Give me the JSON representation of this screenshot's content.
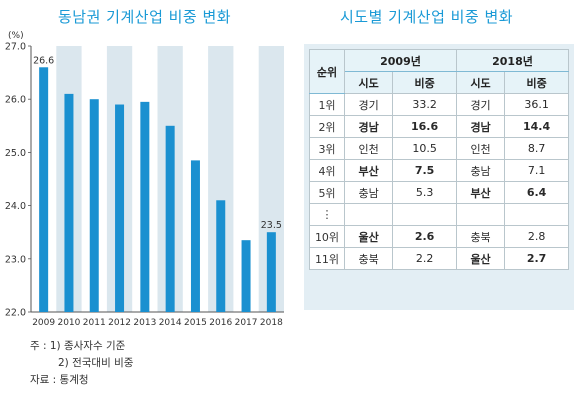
{
  "left_title": "동남권 기계산업 비중 변화",
  "right_title": "시도별 기계산업 비중 변화",
  "chart_data": {
    "type": "bar",
    "unit": "(%)",
    "categories": [
      "2009",
      "2010",
      "2011",
      "2012",
      "2013",
      "2014",
      "2015",
      "2016",
      "2017",
      "2018"
    ],
    "values": [
      26.6,
      26.1,
      26.0,
      25.9,
      25.95,
      25.5,
      24.85,
      24.1,
      23.35,
      23.5
    ],
    "data_labels": {
      "2009": "26.6",
      "2018": "23.5"
    },
    "yticks": [
      "27.0",
      "26.0",
      "25.0",
      "24.0",
      "23.0",
      "22.0"
    ],
    "ylim": [
      22.0,
      27.0
    ],
    "bar_color": "#1a90d0",
    "band_color": "#dbe7ee"
  },
  "notes": {
    "line1": "주 : 1) 종사자수 기준",
    "line2": "2) 전국대비 비중",
    "source": "자료 : 통계청"
  },
  "table": {
    "rank_header": "순위",
    "year1": "2009년",
    "year2": "2018년",
    "sub": [
      "시도",
      "비중",
      "시도",
      "비중"
    ],
    "rows": [
      {
        "rank": "1위",
        "r1": "경기",
        "v1": "33.2",
        "r2": "경기",
        "v2": "36.1",
        "b1": false,
        "b2": false
      },
      {
        "rank": "2위",
        "r1": "경남",
        "v1": "16.6",
        "r2": "경남",
        "v2": "14.4",
        "b1": true,
        "b2": true
      },
      {
        "rank": "3위",
        "r1": "인천",
        "v1": "10.5",
        "r2": "인천",
        "v2": "8.7",
        "b1": false,
        "b2": false
      },
      {
        "rank": "4위",
        "r1": "부산",
        "v1": "7.5",
        "r2": "충남",
        "v2": "7.1",
        "b1": true,
        "b2": false
      },
      {
        "rank": "5위",
        "r1": "충남",
        "v1": "5.3",
        "r2": "부산",
        "v2": "6.4",
        "b1": false,
        "b2": true
      },
      {
        "rank": "⋮",
        "r1": "",
        "v1": "",
        "r2": "",
        "v2": "",
        "b1": false,
        "b2": false
      },
      {
        "rank": "10위",
        "r1": "울산",
        "v1": "2.6",
        "r2": "충북",
        "v2": "2.8",
        "b1": true,
        "b2": false
      },
      {
        "rank": "11위",
        "r1": "충북",
        "v1": "2.2",
        "r2": "울산",
        "v2": "2.7",
        "b1": false,
        "b2": true
      }
    ]
  }
}
